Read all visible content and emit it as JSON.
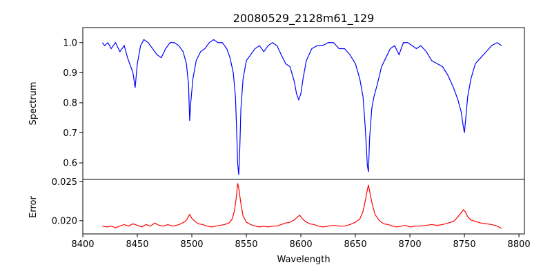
{
  "chart_data": [
    {
      "type": "line",
      "title": "20080529_2128m61_129",
      "xlabel": "",
      "ylabel": "Spectrum",
      "xlim": [
        8400,
        8805
      ],
      "ylim": [
        0.545,
        1.05
      ],
      "yticks": [
        0.6,
        0.7,
        0.8,
        0.9,
        1.0
      ],
      "ytick_labels": [
        "0.6",
        "0.7",
        "0.8",
        "0.9",
        "1.0"
      ],
      "grid": false,
      "series": [
        {
          "color": "#0000ff",
          "x": [
            8418,
            8420,
            8423,
            8426,
            8430,
            8434,
            8438,
            8441,
            8444,
            8446,
            8448,
            8450,
            8453,
            8456,
            8460,
            8464,
            8468,
            8472,
            8476,
            8480,
            8484,
            8488,
            8492,
            8495,
            8497,
            8498,
            8499,
            8501,
            8504,
            8508,
            8512,
            8516,
            8520,
            8524,
            8528,
            8532,
            8535,
            8538,
            8540,
            8541,
            8542,
            8543,
            8544,
            8545,
            8547,
            8550,
            8554,
            8558,
            8562,
            8566,
            8570,
            8574,
            8578,
            8582,
            8586,
            8590,
            8594,
            8596,
            8598,
            8600,
            8602,
            8605,
            8610,
            8615,
            8620,
            8625,
            8630,
            8635,
            8640,
            8645,
            8650,
            8654,
            8657,
            8659,
            8661,
            8662,
            8663,
            8665,
            8667,
            8670,
            8674,
            8678,
            8682,
            8686,
            8690,
            8694,
            8698,
            8702,
            8706,
            8710,
            8715,
            8720,
            8725,
            8730,
            8735,
            8740,
            8744,
            8747,
            8749,
            8750,
            8751,
            8753,
            8756,
            8760,
            8765,
            8770,
            8775,
            8780,
            8784
          ],
          "y": [
            1.0,
            0.99,
            1.0,
            0.98,
            1.0,
            0.97,
            0.99,
            0.95,
            0.92,
            0.9,
            0.85,
            0.93,
            0.99,
            1.01,
            1.0,
            0.98,
            0.96,
            0.95,
            0.98,
            1.0,
            1.0,
            0.99,
            0.97,
            0.93,
            0.86,
            0.74,
            0.8,
            0.88,
            0.94,
            0.97,
            0.98,
            1.0,
            1.01,
            1.0,
            1.0,
            0.98,
            0.95,
            0.9,
            0.82,
            0.72,
            0.6,
            0.56,
            0.65,
            0.78,
            0.88,
            0.94,
            0.96,
            0.98,
            0.99,
            0.97,
            0.99,
            1.0,
            0.99,
            0.96,
            0.93,
            0.92,
            0.87,
            0.83,
            0.81,
            0.83,
            0.88,
            0.94,
            0.98,
            0.99,
            0.99,
            1.0,
            1.0,
            0.98,
            0.98,
            0.96,
            0.93,
            0.88,
            0.82,
            0.72,
            0.59,
            0.57,
            0.68,
            0.78,
            0.82,
            0.86,
            0.92,
            0.95,
            0.98,
            0.99,
            0.96,
            1.0,
            1.0,
            0.99,
            0.98,
            0.99,
            0.97,
            0.94,
            0.93,
            0.92,
            0.89,
            0.85,
            0.81,
            0.77,
            0.72,
            0.7,
            0.74,
            0.82,
            0.88,
            0.93,
            0.95,
            0.97,
            0.99,
            1.0,
            0.99
          ]
        }
      ]
    },
    {
      "type": "line",
      "title": "",
      "xlabel": "Wavelength",
      "ylabel": "Error",
      "xlim": [
        8400,
        8805
      ],
      "ylim": [
        0.0183,
        0.0253
      ],
      "xticks": [
        8400,
        8450,
        8500,
        8550,
        8600,
        8650,
        8700,
        8750,
        8800
      ],
      "xtick_labels": [
        "8400",
        "8450",
        "8500",
        "8550",
        "8600",
        "8650",
        "8700",
        "8750",
        "8800"
      ],
      "yticks": [
        0.02,
        0.025
      ],
      "ytick_labels": [
        "0.020",
        "0.025"
      ],
      "grid": false,
      "series": [
        {
          "color": "#ff0000",
          "x": [
            8418,
            8422,
            8426,
            8430,
            8434,
            8438,
            8442,
            8446,
            8450,
            8454,
            8458,
            8462,
            8466,
            8470,
            8474,
            8478,
            8482,
            8486,
            8490,
            8494,
            8496,
            8498,
            8500,
            8503,
            8506,
            8510,
            8514,
            8518,
            8522,
            8526,
            8530,
            8534,
            8537,
            8539,
            8541,
            8542,
            8543,
            8545,
            8547,
            8550,
            8554,
            8558,
            8562,
            8566,
            8570,
            8574,
            8578,
            8582,
            8586,
            8590,
            8594,
            8597,
            8599,
            8601,
            8604,
            8608,
            8612,
            8616,
            8620,
            8625,
            8630,
            8635,
            8640,
            8645,
            8650,
            8654,
            8657,
            8659,
            8661,
            8662,
            8663,
            8665,
            8668,
            8672,
            8676,
            8680,
            8684,
            8688,
            8692,
            8696,
            8700,
            8705,
            8710,
            8715,
            8720,
            8725,
            8730,
            8735,
            8740,
            8744,
            8747,
            8749,
            8751,
            8753,
            8756,
            8760,
            8765,
            8770,
            8775,
            8780,
            8784
          ],
          "y": [
            0.0193,
            0.0192,
            0.0193,
            0.0191,
            0.0193,
            0.0195,
            0.0193,
            0.0196,
            0.0194,
            0.0192,
            0.0195,
            0.0193,
            0.0197,
            0.0194,
            0.0193,
            0.0195,
            0.0193,
            0.0194,
            0.0196,
            0.0199,
            0.0203,
            0.0208,
            0.0203,
            0.0199,
            0.0196,
            0.0195,
            0.0193,
            0.0192,
            0.0193,
            0.0194,
            0.0195,
            0.0197,
            0.0202,
            0.0212,
            0.0232,
            0.0248,
            0.0242,
            0.0222,
            0.0206,
            0.0198,
            0.0195,
            0.0193,
            0.0192,
            0.0193,
            0.0192,
            0.0193,
            0.0193,
            0.0195,
            0.0197,
            0.0198,
            0.0201,
            0.0205,
            0.0207,
            0.0203,
            0.0199,
            0.0196,
            0.0195,
            0.0193,
            0.0192,
            0.0193,
            0.0194,
            0.0193,
            0.0193,
            0.0195,
            0.0198,
            0.0202,
            0.0212,
            0.0225,
            0.024,
            0.0246,
            0.0238,
            0.0224,
            0.0208,
            0.02,
            0.0196,
            0.0195,
            0.0193,
            0.0192,
            0.0193,
            0.0194,
            0.0192,
            0.0193,
            0.0193,
            0.0194,
            0.0195,
            0.0194,
            0.0195,
            0.0197,
            0.0199,
            0.0205,
            0.021,
            0.0214,
            0.0211,
            0.0205,
            0.0201,
            0.0199,
            0.0197,
            0.0196,
            0.0195,
            0.0193,
            0.019
          ]
        }
      ]
    }
  ]
}
